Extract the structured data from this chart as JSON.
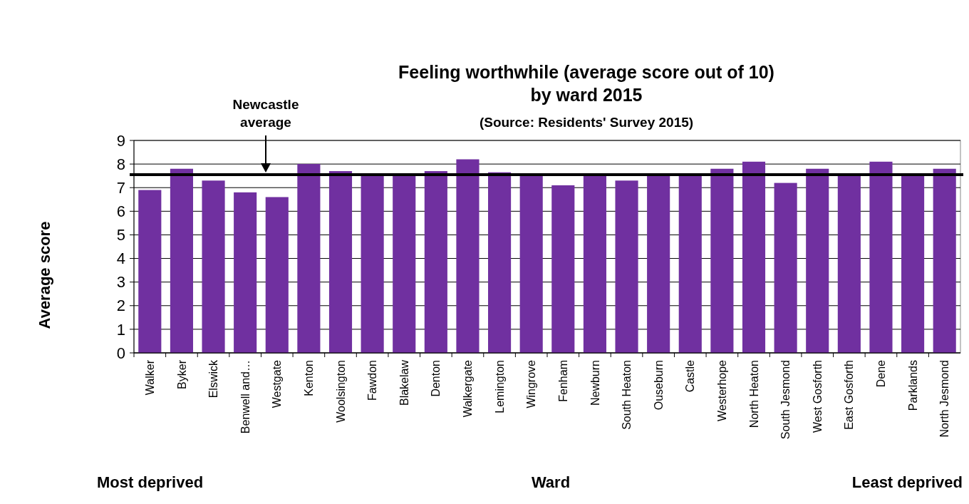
{
  "chart_data": {
    "type": "bar",
    "title": "Feeling worthwhile (average score out of 10)\nby ward 2015",
    "subtitle": "(Source: Residents' Survey 2015)",
    "xlabel": "Ward",
    "ylabel": "Average score",
    "categories": [
      "Walker",
      "Byker",
      "Elswick",
      "Benwell and…",
      "Westgate",
      "Kenton",
      "Woolsington",
      "Fawdon",
      "Blakelaw",
      "Denton",
      "Walkergate",
      "Lemington",
      "Wingrove",
      "Fenham",
      "Newburn",
      "South Heaton",
      "Ouseburn",
      "Castle",
      "Westerhope",
      "North Heaton",
      "South Jesmond",
      "West Gosforth",
      "East Gosforth",
      "Dene",
      "Parklands",
      "North Jesmond"
    ],
    "values": [
      6.9,
      7.8,
      7.3,
      6.8,
      6.6,
      8.0,
      7.7,
      7.5,
      7.5,
      7.7,
      8.2,
      7.65,
      7.5,
      7.1,
      7.5,
      7.3,
      7.5,
      7.5,
      7.8,
      8.1,
      7.2,
      7.8,
      7.5,
      8.1,
      7.5,
      7.8
    ],
    "color": "#7030a0",
    "ylim": [
      0,
      9
    ],
    "yticks": [
      0,
      1,
      2,
      3,
      4,
      5,
      6,
      7,
      8,
      9
    ],
    "grid": "y",
    "ref_lines": [
      {
        "axis": "y",
        "value": 7.55,
        "label": "Newcastle\naverage",
        "color": "#000000"
      }
    ],
    "annotations": [
      "Most deprived",
      "Least deprived"
    ]
  }
}
